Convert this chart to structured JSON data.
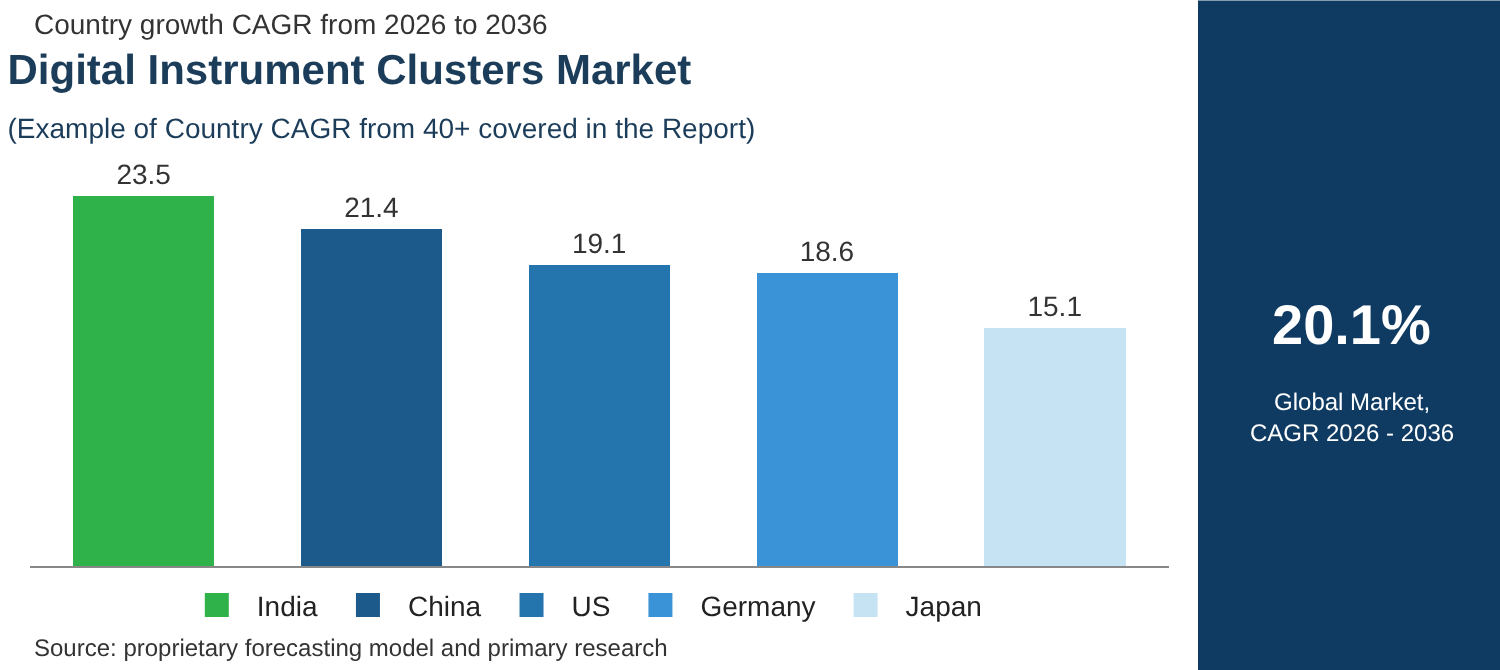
{
  "chart_data": {
    "type": "bar",
    "title": "Digital Instrument Clusters Market",
    "subtitle": "(Example of Country CAGR from 40+ covered in the Report)",
    "categories": [
      null,
      null,
      null,
      null,
      null
    ],
    "series": [
      {
        "name": "India",
        "color": "#2fb24a",
        "values": [
          23.5,
          null,
          null,
          null,
          null
        ]
      },
      {
        "name": "China",
        "color": "#1b5a8a",
        "values": [
          null,
          21.4,
          null,
          null,
          null
        ]
      },
      {
        "name": "US",
        "color": "#2474ae",
        "values": [
          null,
          null,
          19.1,
          null,
          null
        ]
      },
      {
        "name": "Germany",
        "color": "#3a93d6",
        "values": [
          null,
          null,
          null,
          18.6,
          null
        ]
      },
      {
        "name": "Japan",
        "color": "#c6e3f4",
        "values": [
          null,
          null,
          null,
          null,
          15.1
        ]
      }
    ],
    "stacked": true,
    "data_labels": true,
    "legend": "bottom",
    "annotations": [
      "Country growth CAGR from 2026 to 2036",
      "Source: proprietary forecasting model and primary research",
      "20.1%",
      "Global Market,\nCAGR 2026 - 2036"
    ]
  }
}
